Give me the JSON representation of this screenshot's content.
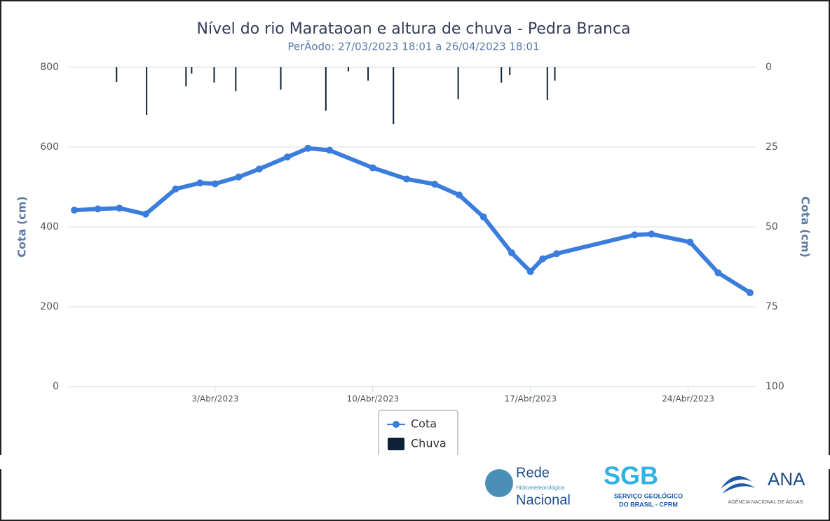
{
  "chart_data": {
    "type": "line",
    "title": "Nível do rio Marataoan e altura de chuva - Pedra Branca",
    "subtitle": "PerÃodo: 27/03/2023 18:01 a 26/04/2023 18:01",
    "y_label": "Cota (cm)",
    "y2_label": "Cota (cm)",
    "xlim": [
      "2023-03-27T12:00",
      "2023-04-27T00:00"
    ],
    "xticks": [
      {
        "value": "2023-04-03T00:00",
        "label": "3/Abr/2023"
      },
      {
        "value": "2023-04-10T00:00",
        "label": "10/Abr/2023"
      },
      {
        "value": "2023-04-17T00:00",
        "label": "17/Abr/2023"
      },
      {
        "value": "2023-04-24T00:00",
        "label": "24/Abr/2023"
      }
    ],
    "ylim": [
      0,
      800
    ],
    "yticks": [
      0,
      200,
      400,
      600,
      800
    ],
    "y2lim": [
      0,
      100
    ],
    "y2ticks": [
      0,
      25,
      50,
      75,
      100
    ],
    "y2_reversed": true,
    "grid": true,
    "legend": "bottom",
    "series": [
      {
        "name": "Cota",
        "color": "#3b7ddd",
        "type": "line",
        "x": [
          "2023-03-27T18:00",
          "2023-03-28T19:00",
          "2023-03-29T18:00",
          "2023-03-30T22:00",
          "2023-04-01T06:00",
          "2023-04-02T08:00",
          "2023-04-03T00:00",
          "2023-04-04T01:00",
          "2023-04-04T23:00",
          "2023-04-06T05:00",
          "2023-04-07T03:00",
          "2023-04-08T02:00",
          "2023-04-10T00:00",
          "2023-04-11T12:00",
          "2023-04-12T18:00",
          "2023-04-13T20:00",
          "2023-04-14T22:00",
          "2023-04-16T04:00",
          "2023-04-17T00:00",
          "2023-04-17T13:00",
          "2023-04-18T04:00",
          "2023-04-21T15:00",
          "2023-04-22T09:00",
          "2023-04-24T02:00",
          "2023-04-25T08:00",
          "2023-04-26T18:00"
        ],
        "values": [
          442,
          445,
          447,
          432,
          495,
          510,
          508,
          525,
          545,
          575,
          597,
          592,
          548,
          520,
          507,
          480,
          425,
          335,
          288,
          320,
          333,
          380,
          382,
          362,
          285,
          235
        ]
      },
      {
        "name": "Chuva",
        "color": "#0d2238",
        "type": "bar",
        "axis": "y2",
        "x": [
          "2023-03-29T15:00",
          "2023-03-30T23:00",
          "2023-04-01T17:00",
          "2023-04-01T23:00",
          "2023-04-02T23:00",
          "2023-04-03T22:00",
          "2023-04-05T22:00",
          "2023-04-07T22:00",
          "2023-04-08T22:00",
          "2023-04-09T19:00",
          "2023-04-10T22:00",
          "2023-04-13T19:00",
          "2023-04-15T17:00",
          "2023-04-16T02:00",
          "2023-04-17T18:00",
          "2023-04-18T02:00"
        ],
        "values": [
          4.6,
          14.9,
          6,
          2,
          4.8,
          7.5,
          7,
          13.6,
          1.3,
          4.2,
          17.8,
          10,
          4.8,
          2.4,
          10.3,
          4.2
        ]
      }
    ]
  },
  "logos": [
    {
      "title": "Rede",
      "subtitle": "Hidrometeorológica",
      "name": "Nacional"
    },
    {
      "title": "SGB",
      "subtitle": "SERVIÇO GEOLÓGICO",
      "name": "DO BRASIL - CPRM"
    },
    {
      "title": "ANA",
      "name": "AGÊNCIA NACIONAL DE ÁGUAS"
    }
  ]
}
